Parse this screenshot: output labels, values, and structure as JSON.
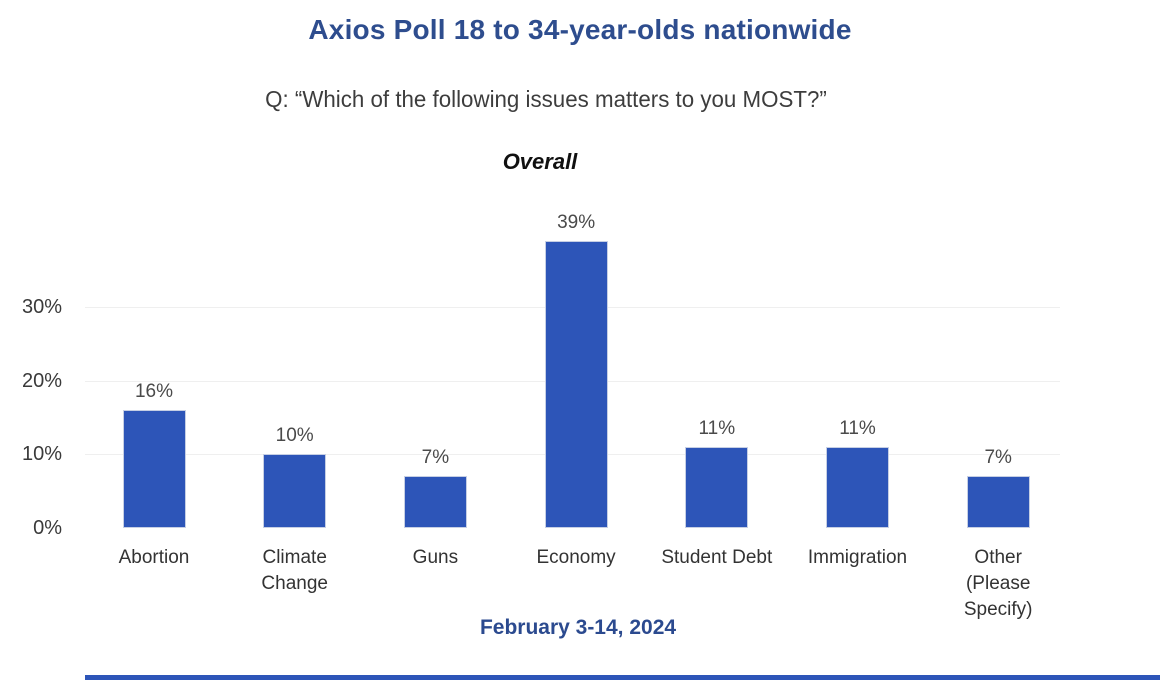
{
  "page": {
    "title": "Axios Poll 18 to 34-year-olds nationwide",
    "question": "Q:  “Which of the following issues matters to you MOST?”",
    "group_label": "Overall",
    "footer_date": "February 3-14, 2024"
  },
  "colors": {
    "bar_fill": "#2d55b8",
    "bar_border": "#c6cfe4",
    "title_text": "#2e4d8e",
    "footer_text": "#2b4a8f",
    "axis_text": "#3a3a3a",
    "data_label_text": "#4a4a4a",
    "category_text": "#333333",
    "gridline": "#efefef",
    "bottom_strip": "#2d55b8"
  },
  "chart_data": {
    "type": "bar",
    "title": "Overall",
    "suptitle": "Axios Poll 18 to 34-year-olds nationwide",
    "subtitle": "Q:  “Which of the following issues matters to you MOST?”",
    "caption": "February 3-14, 2024",
    "categories": [
      "Abortion",
      "Climate Change",
      "Guns",
      "Economy",
      "Student Debt",
      "Immigration",
      "Other (Please Specify)"
    ],
    "category_label_lines": [
      [
        "Abortion"
      ],
      [
        "Climate",
        "Change"
      ],
      [
        "Guns"
      ],
      [
        "Economy"
      ],
      [
        "Student Debt"
      ],
      [
        "Immigration"
      ],
      [
        "Other",
        "(Please",
        "Specify)"
      ]
    ],
    "values": [
      16,
      10,
      7,
      39,
      11,
      11,
      7
    ],
    "data_labels": [
      "16%",
      "10%",
      "7%",
      "39%",
      "11%",
      "11%",
      "7%"
    ],
    "unit": "%",
    "xlabel": "",
    "ylabel": "",
    "ylim": [
      0,
      40
    ],
    "yticks": [
      0,
      10,
      20,
      30
    ],
    "ytick_labels": [
      "0%",
      "10%",
      "20%",
      "30%"
    ],
    "grid": "horizontal-faint",
    "legend": "none",
    "bar_color": "#2d55b8"
  }
}
